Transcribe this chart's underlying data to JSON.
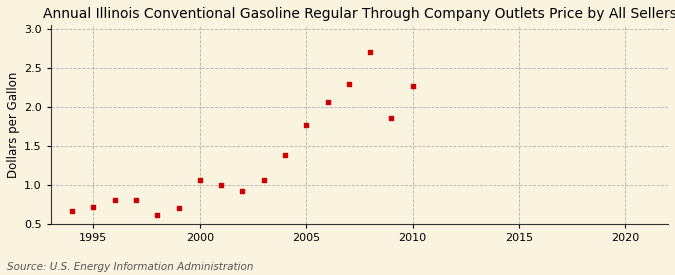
{
  "title": "Annual Illinois Conventional Gasoline Regular Through Company Outlets Price by All Sellers",
  "ylabel": "Dollars per Gallon",
  "source": "Source: U.S. Energy Information Administration",
  "background_color": "#faf3e0",
  "marker_color": "#cc0000",
  "years": [
    1994,
    1995,
    1996,
    1997,
    1998,
    1999,
    2000,
    2001,
    2002,
    2003,
    2004,
    2005,
    2006,
    2007,
    2008,
    2009,
    2010
  ],
  "prices": [
    0.67,
    0.72,
    0.81,
    0.81,
    0.62,
    0.71,
    1.07,
    1.0,
    0.93,
    1.07,
    1.38,
    1.77,
    2.07,
    2.3,
    2.7,
    1.86,
    2.27
  ],
  "xlim": [
    1993,
    2022
  ],
  "ylim": [
    0.5,
    3.05
  ],
  "xticks": [
    1995,
    2000,
    2005,
    2010,
    2015,
    2020
  ],
  "yticks": [
    0.5,
    1.0,
    1.5,
    2.0,
    2.5,
    3.0
  ],
  "grid_color": "#aaaaaa",
  "title_fontsize": 10,
  "axis_label_fontsize": 8.5,
  "tick_fontsize": 8,
  "source_fontsize": 7.5
}
